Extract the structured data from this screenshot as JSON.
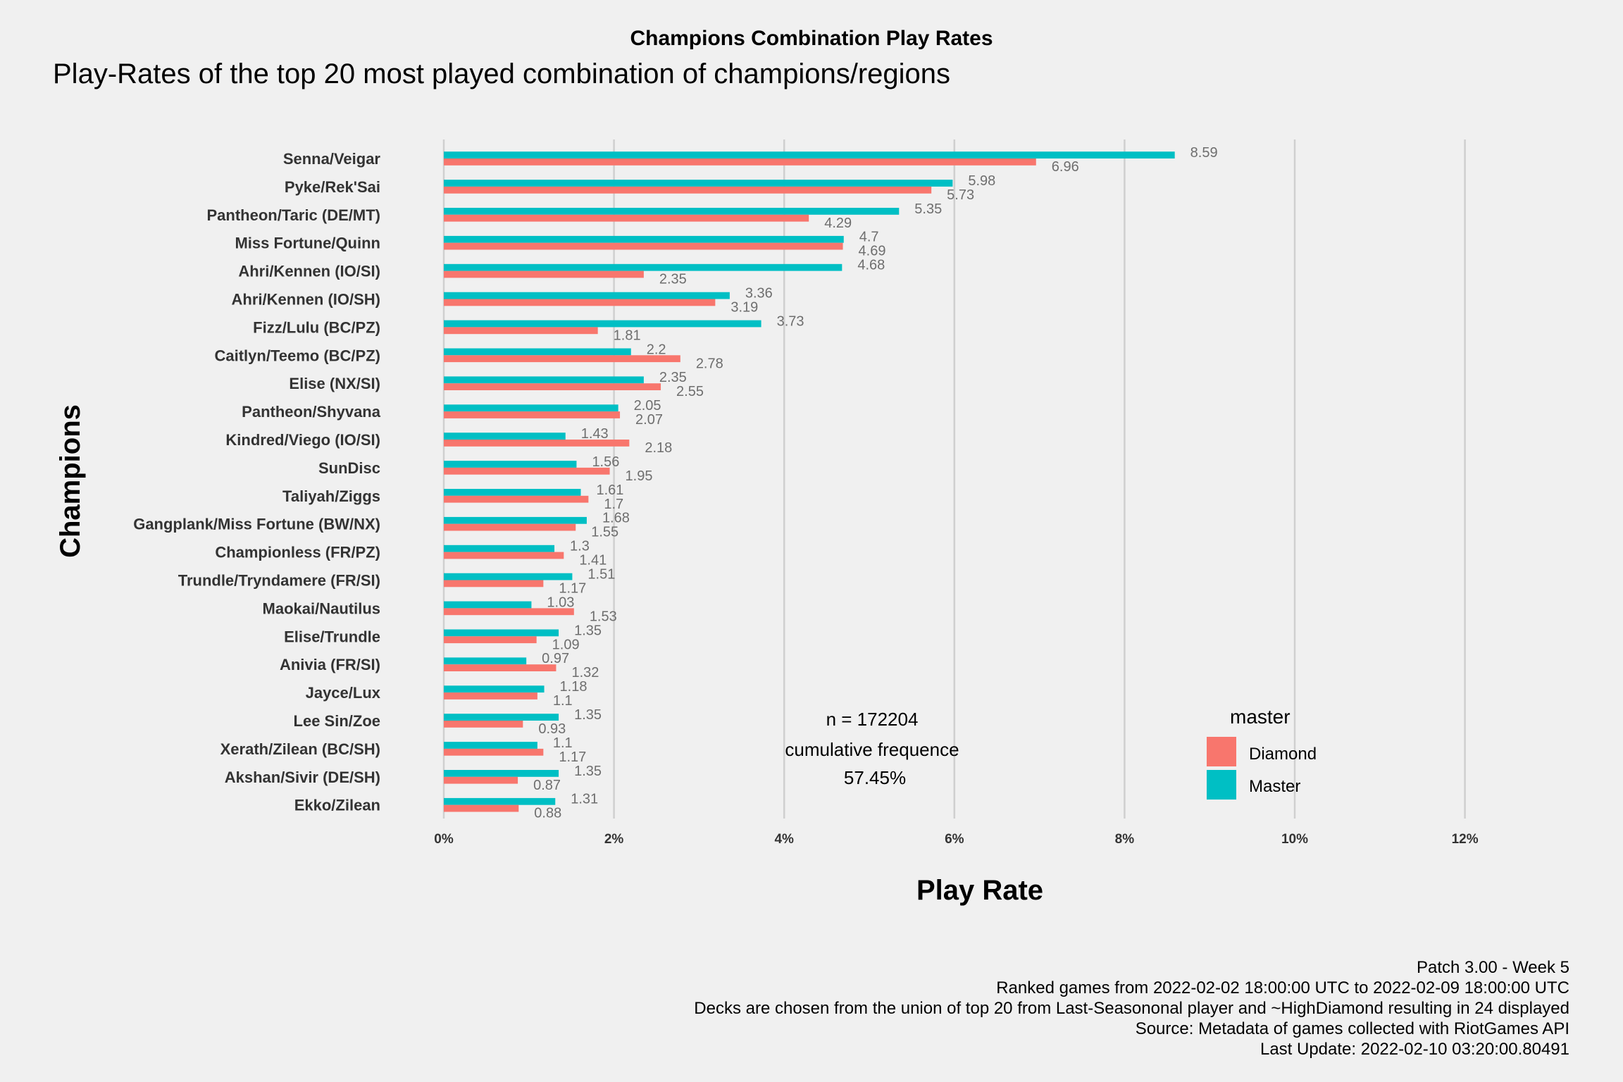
{
  "chart_data": {
    "type": "bar",
    "orientation": "horizontal",
    "title": "Champions Combination Play Rates",
    "subtitle": "Play-Rates of the top 20 most played combination of champions/regions",
    "xlabel": "Play Rate",
    "ylabel": "Champions",
    "xlim": [
      0,
      12
    ],
    "x_ticks": [
      "0%",
      "2%",
      "4%",
      "6%",
      "8%",
      "10%",
      "12%"
    ],
    "x_tick_values": [
      0,
      2,
      4,
      6,
      8,
      10,
      12
    ],
    "grid": "vertical major gridlines",
    "categories": [
      "Senna/Veigar",
      "Pyke/Rek'Sai",
      "Pantheon/Taric (DE/MT)",
      "Miss Fortune/Quinn",
      "Ahri/Kennen (IO/SI)",
      "Ahri/Kennen (IO/SH)",
      "Fizz/Lulu (BC/PZ)",
      "Caitlyn/Teemo (BC/PZ)",
      "Elise (NX/SI)",
      "Pantheon/Shyvana",
      "Kindred/Viego (IO/SI)",
      "SunDisc",
      "Taliyah/Ziggs",
      "Gangplank/Miss Fortune (BW/NX)",
      "Championless (FR/PZ)",
      "Trundle/Tryndamere (FR/SI)",
      "Maokai/Nautilus",
      "Elise/Trundle",
      "Anivia (FR/SI)",
      "Jayce/Lux",
      "Lee Sin/Zoe",
      "Xerath/Zilean (BC/SH)",
      "Akshan/Sivir (DE/SH)",
      "Ekko/Zilean"
    ],
    "series": [
      {
        "name": "Master",
        "color": "#00bfc4",
        "values": [
          8.59,
          5.98,
          5.35,
          4.7,
          4.68,
          3.36,
          3.73,
          2.2,
          2.35,
          2.05,
          1.43,
          1.56,
          1.61,
          1.68,
          1.3,
          1.51,
          1.03,
          1.35,
          0.97,
          1.18,
          1.35,
          1.1,
          1.35,
          1.31
        ],
        "labels": [
          "8.59",
          "5.98",
          "5.35",
          "4.7",
          "4.68",
          "3.36",
          "3.73",
          "2.2",
          "2.35",
          "2.05",
          "1.43",
          "1.56",
          "1.61",
          "1.68",
          "1.3",
          "1.51",
          "1.03",
          "1.35",
          "0.97",
          "1.18",
          "1.35",
          "1.1",
          "1.35",
          "1.31"
        ]
      },
      {
        "name": "Diamond",
        "color": "#f8766d",
        "values": [
          6.96,
          5.73,
          4.29,
          4.69,
          2.35,
          3.19,
          1.81,
          2.78,
          2.55,
          2.07,
          2.18,
          1.95,
          1.7,
          1.55,
          1.41,
          1.17,
          1.53,
          1.09,
          1.32,
          1.1,
          0.93,
          1.17,
          0.87,
          0.88
        ],
        "labels": [
          "6.96",
          "5.73",
          "4.29",
          "4.69",
          "2.35",
          "3.19",
          "1.81",
          "2.78",
          "2.55",
          "2.07",
          "2.18",
          "1.95",
          "1.7",
          "1.55",
          "1.41",
          "1.17",
          "1.53",
          "1.09",
          "1.32",
          "1.1",
          "0.93",
          "1.17",
          "0.87",
          "0.88"
        ]
      }
    ],
    "legend": {
      "title": "master",
      "position": "right-bottom",
      "items": [
        {
          "name": "Diamond",
          "color": "#f8766d"
        },
        {
          "name": "Master",
          "color": "#00bfc4"
        }
      ]
    },
    "annotation": [
      "n = 172204",
      "cumulative frequence",
      "57.45%"
    ],
    "caption": [
      "Patch 3.00 - Week 5",
      "Ranked games from 2022-02-02 18:00:00 UTC to 2022-02-09 18:00:00 UTC",
      "Decks are chosen from the union of top 20 from Last-Seasononal player and ~HighDiamond resulting in 24 displayed",
      "Source: Metadata of games collected with RiotGames API",
      "Last Update: 2022-02-10 03:20:00.80491"
    ]
  }
}
